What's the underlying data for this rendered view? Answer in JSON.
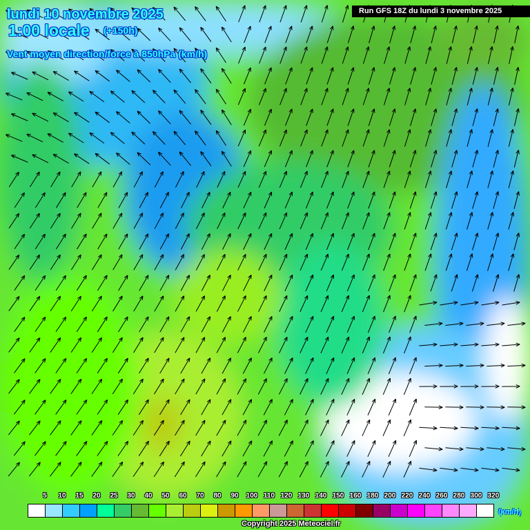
{
  "header": {
    "date": "lundi 10 novembre 2025",
    "time": "1:00 locale",
    "offset": "(+150h)",
    "parameter": "Vent moyen direction/force à 850hPa (km/h)",
    "run": "Run GFS 18Z du lundi 3 novembre 2025"
  },
  "legend": {
    "unit": "(km/h)",
    "labels": [
      "5",
      "10",
      "15",
      "20",
      "25",
      "30",
      "40",
      "50",
      "60",
      "70",
      "80",
      "90",
      "100",
      "110",
      "120",
      "130",
      "140",
      "150",
      "160",
      "180",
      "200",
      "220",
      "240",
      "260",
      "280",
      "300",
      "320"
    ],
    "colors": [
      "#ffffff",
      "#99e6ff",
      "#33ccff",
      "#00a0ff",
      "#00ff99",
      "#33cc66",
      "#66bb33",
      "#66ff00",
      "#aaee33",
      "#bbcc11",
      "#ddee11",
      "#cc9900",
      "#ff9900",
      "#ff9966",
      "#cc9999",
      "#cc6633",
      "#cc3333",
      "#ff0000",
      "#cc0000",
      "#800000",
      "#990066",
      "#cc00cc",
      "#ff00ff",
      "#ff44ff",
      "#ff88ff",
      "#ffaaff",
      "#ffffff"
    ]
  },
  "footer": {
    "copyright": "Copyright 2025 Meteociel.fr"
  }
}
